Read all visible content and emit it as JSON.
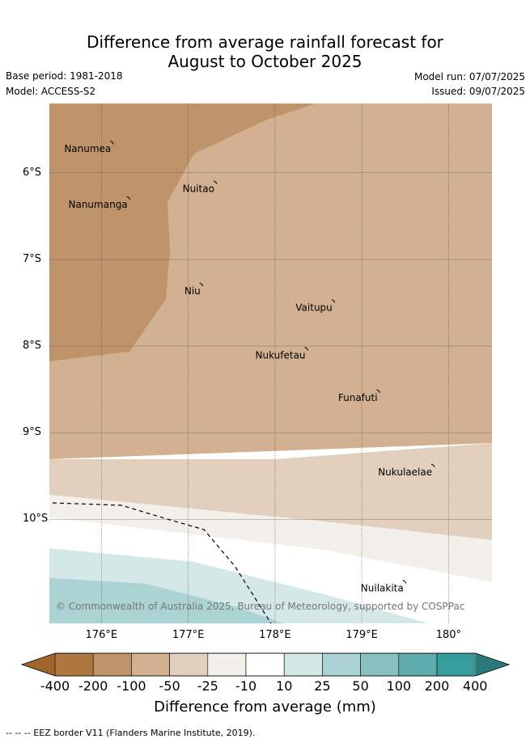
{
  "title_line1": "Difference from average rainfall forecast for",
  "title_line2": "August to October 2025",
  "meta": {
    "base_period": "Base period: 1981-2018",
    "model": "Model: ACCESS-S2",
    "model_run": "Model run: 07/07/2025",
    "issued": "Issued: 09/07/2025"
  },
  "axes": {
    "lat_ticks": [
      {
        "value": -6,
        "label": "6°S"
      },
      {
        "value": -7,
        "label": "7°S"
      },
      {
        "value": -8,
        "label": "8°S"
      },
      {
        "value": -9,
        "label": "9°S"
      },
      {
        "value": -10,
        "label": "10°S"
      }
    ],
    "lon_ticks": [
      {
        "value": 176,
        "label": "176°E"
      },
      {
        "value": 177,
        "label": "177°E"
      },
      {
        "value": 178,
        "label": "178°E"
      },
      {
        "value": 179,
        "label": "179°E"
      },
      {
        "value": 180,
        "label": "180°"
      }
    ],
    "lon_range": [
      175.4,
      180.5
    ],
    "lat_range": [
      -11.2,
      -5.2
    ]
  },
  "islands": [
    {
      "name": "Nanumea",
      "lon": 176.13,
      "lat": -5.65
    },
    {
      "name": "Nuitao",
      "lon": 177.32,
      "lat": -6.11
    },
    {
      "name": "Nanumanga",
      "lon": 176.32,
      "lat": -6.29
    },
    {
      "name": "Niu",
      "lon": 177.16,
      "lat": -7.29
    },
    {
      "name": "Vaitupu",
      "lon": 178.68,
      "lat": -7.48
    },
    {
      "name": "Nukufetau",
      "lon": 178.37,
      "lat": -8.03
    },
    {
      "name": "Funafuti",
      "lon": 179.2,
      "lat": -8.52
    },
    {
      "name": "Nukulaelae",
      "lon": 179.83,
      "lat": -9.38
    },
    {
      "name": "Nuilakita",
      "lon": 179.5,
      "lat": -10.72
    }
  ],
  "copyright": "© Commonwealth of Australia 2025, Bureau of Meteorology, supported by COSPPac",
  "colorbar": {
    "ticks": [
      "-400",
      "-200",
      "-100",
      "-50",
      "-25",
      "-10",
      "10",
      "25",
      "50",
      "100",
      "200",
      "400"
    ],
    "colors": [
      "#a0642d",
      "#b07840",
      "#c0946a",
      "#d2b192",
      "#e3cfbe",
      "#f3efea",
      "#ffffff",
      "#d4e8e8",
      "#acd3d3",
      "#88c0c0",
      "#5eacac",
      "#369d9d",
      "#2a7a7d"
    ],
    "label": "Difference from average (mm)"
  },
  "footer": "--  --  -- EEZ border V11 (Flanders Marine Institute, 2019)."
}
